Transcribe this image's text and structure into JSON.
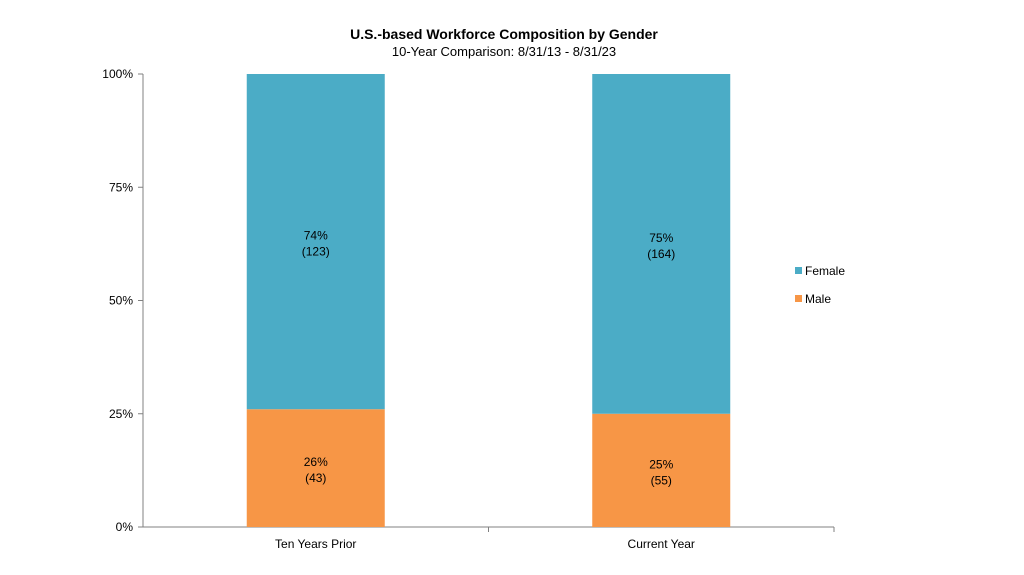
{
  "chart_data": {
    "type": "bar",
    "stacked": true,
    "title": "U.S.-based Workforce Composition by Gender",
    "subtitle": "10-Year Comparison: 8/31/13 - 8/31/23",
    "categories": [
      "Ten Years Prior",
      "Current Year"
    ],
    "series": [
      {
        "name": "Male",
        "color": "#F79646",
        "values": [
          26,
          25
        ],
        "labels": [
          "26%",
          "25%"
        ],
        "counts": [
          "(43)",
          "(55)"
        ]
      },
      {
        "name": "Female",
        "color": "#4BACC6",
        "values": [
          74,
          75
        ],
        "labels": [
          "74%",
          "75%"
        ],
        "counts": [
          "(123)",
          "(164)"
        ]
      }
    ],
    "ylim": [
      0,
      100
    ],
    "yticks": [
      0,
      25,
      50,
      75,
      100
    ],
    "ytick_labels": [
      "0%",
      "25%",
      "50%",
      "75%",
      "100%"
    ],
    "legend": {
      "position": "right",
      "order": [
        "Female",
        "Male"
      ]
    },
    "grid": false
  }
}
